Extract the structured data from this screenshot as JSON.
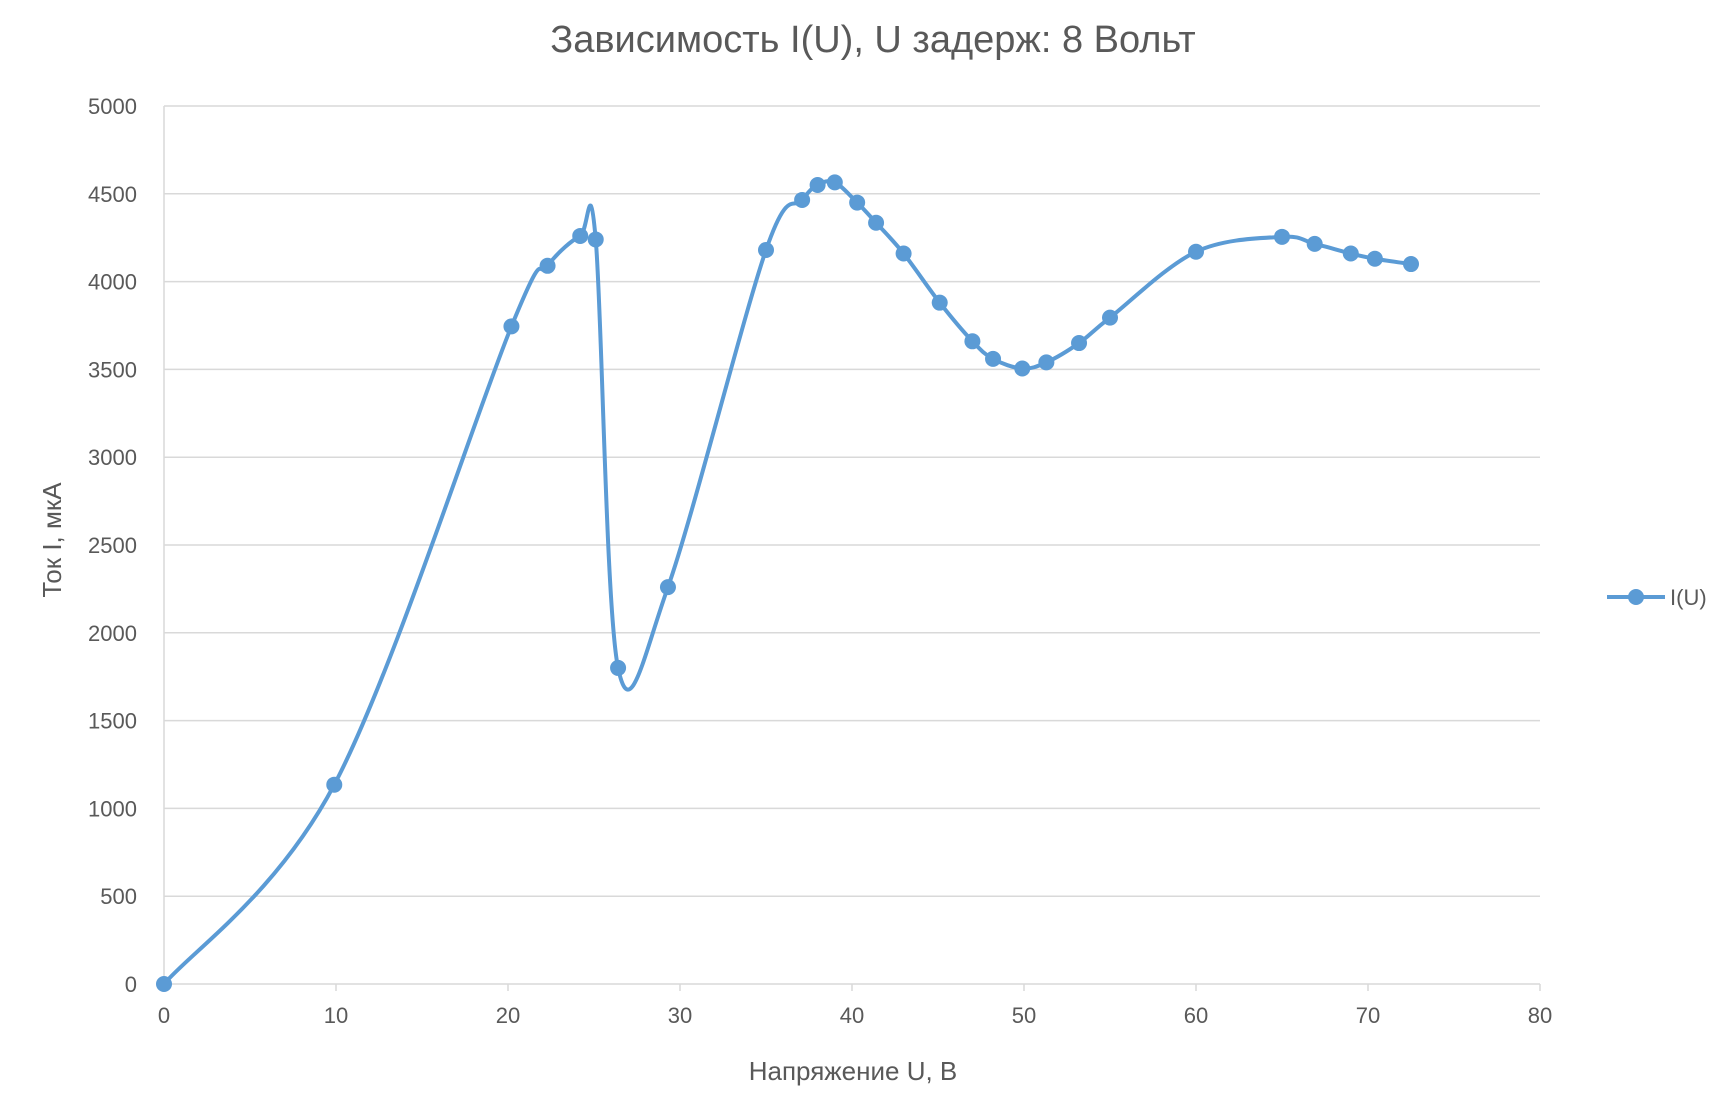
{
  "chart_data": {
    "type": "scatter",
    "subtype": "smooth-line-with-markers",
    "title": "Зависимость I(U), U задерж: 8 Вольт",
    "xlabel": "Напряжение U, В",
    "ylabel": "Ток I, мкА",
    "xlim": [
      0,
      80
    ],
    "ylim": [
      0,
      5000
    ],
    "x_ticks": [
      0,
      10,
      20,
      30,
      40,
      50,
      60,
      70,
      80
    ],
    "y_ticks": [
      0,
      500,
      1000,
      1500,
      2000,
      2500,
      3000,
      3500,
      4000,
      4500,
      5000
    ],
    "grid": "horizontal",
    "legend_position": "right",
    "colors": {
      "series": "#5B9BD5",
      "grid": "#D9D9D9",
      "text": "#595959"
    },
    "series": [
      {
        "name": "I(U)",
        "points": [
          {
            "x": 0,
            "y": 0
          },
          {
            "x": 9.9,
            "y": 1135
          },
          {
            "x": 20.2,
            "y": 3745
          },
          {
            "x": 22.3,
            "y": 4090
          },
          {
            "x": 24.2,
            "y": 4260
          },
          {
            "x": 25.1,
            "y": 4240
          },
          {
            "x": 26.4,
            "y": 1800
          },
          {
            "x": 29.3,
            "y": 2260
          },
          {
            "x": 35.0,
            "y": 4180
          },
          {
            "x": 37.1,
            "y": 4465
          },
          {
            "x": 38.0,
            "y": 4550
          },
          {
            "x": 39.0,
            "y": 4565
          },
          {
            "x": 40.3,
            "y": 4450
          },
          {
            "x": 41.4,
            "y": 4335
          },
          {
            "x": 43.0,
            "y": 4160
          },
          {
            "x": 45.1,
            "y": 3880
          },
          {
            "x": 47.0,
            "y": 3660
          },
          {
            "x": 48.2,
            "y": 3560
          },
          {
            "x": 49.9,
            "y": 3505
          },
          {
            "x": 51.3,
            "y": 3540
          },
          {
            "x": 53.2,
            "y": 3650
          },
          {
            "x": 55.0,
            "y": 3795
          },
          {
            "x": 60.0,
            "y": 4170
          },
          {
            "x": 65.0,
            "y": 4255
          },
          {
            "x": 66.9,
            "y": 4215
          },
          {
            "x": 69.0,
            "y": 4160
          },
          {
            "x": 70.4,
            "y": 4130
          },
          {
            "x": 72.5,
            "y": 4100
          }
        ]
      }
    ]
  }
}
